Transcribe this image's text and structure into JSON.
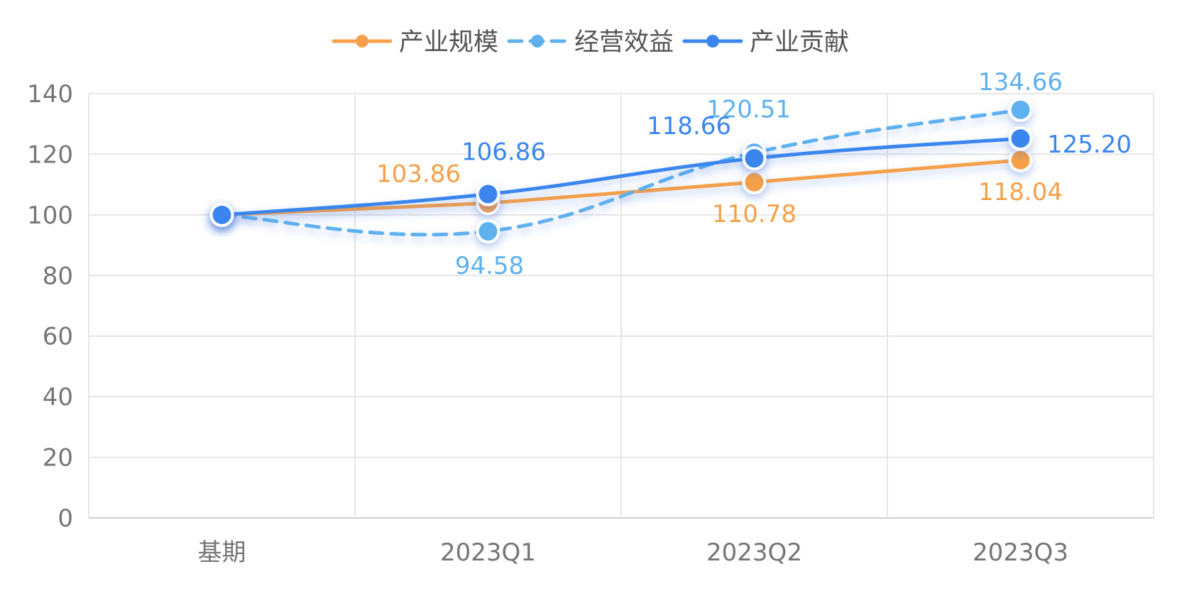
{
  "chart_data": {
    "type": "line",
    "categories": [
      "基期",
      "2023Q1",
      "2023Q2",
      "2023Q3"
    ],
    "ylim": [
      0,
      140
    ],
    "yticks": [
      0,
      20,
      40,
      60,
      80,
      100,
      120,
      140
    ],
    "grid": true,
    "legend_position": "top-center",
    "series": [
      {
        "name": "产业规模",
        "color": "#f5a04a",
        "dashed": false,
        "smooth": false,
        "values": [
          100,
          103.86,
          110.78,
          118.04
        ],
        "labels": [
          "",
          "103.86",
          "110.78",
          "118.04"
        ]
      },
      {
        "name": "经营效益",
        "color": "#5fb0ee",
        "dashed": true,
        "smooth": true,
        "values": [
          100,
          94.58,
          120.51,
          134.66
        ],
        "labels": [
          "",
          "94.58",
          "120.51",
          "134.66"
        ]
      },
      {
        "name": "产业贡献",
        "color": "#3a86ee",
        "dashed": false,
        "smooth": true,
        "values": [
          100,
          106.86,
          118.66,
          125.2
        ],
        "labels": [
          "",
          "106.86",
          "118.66",
          "125.20"
        ]
      }
    ]
  }
}
